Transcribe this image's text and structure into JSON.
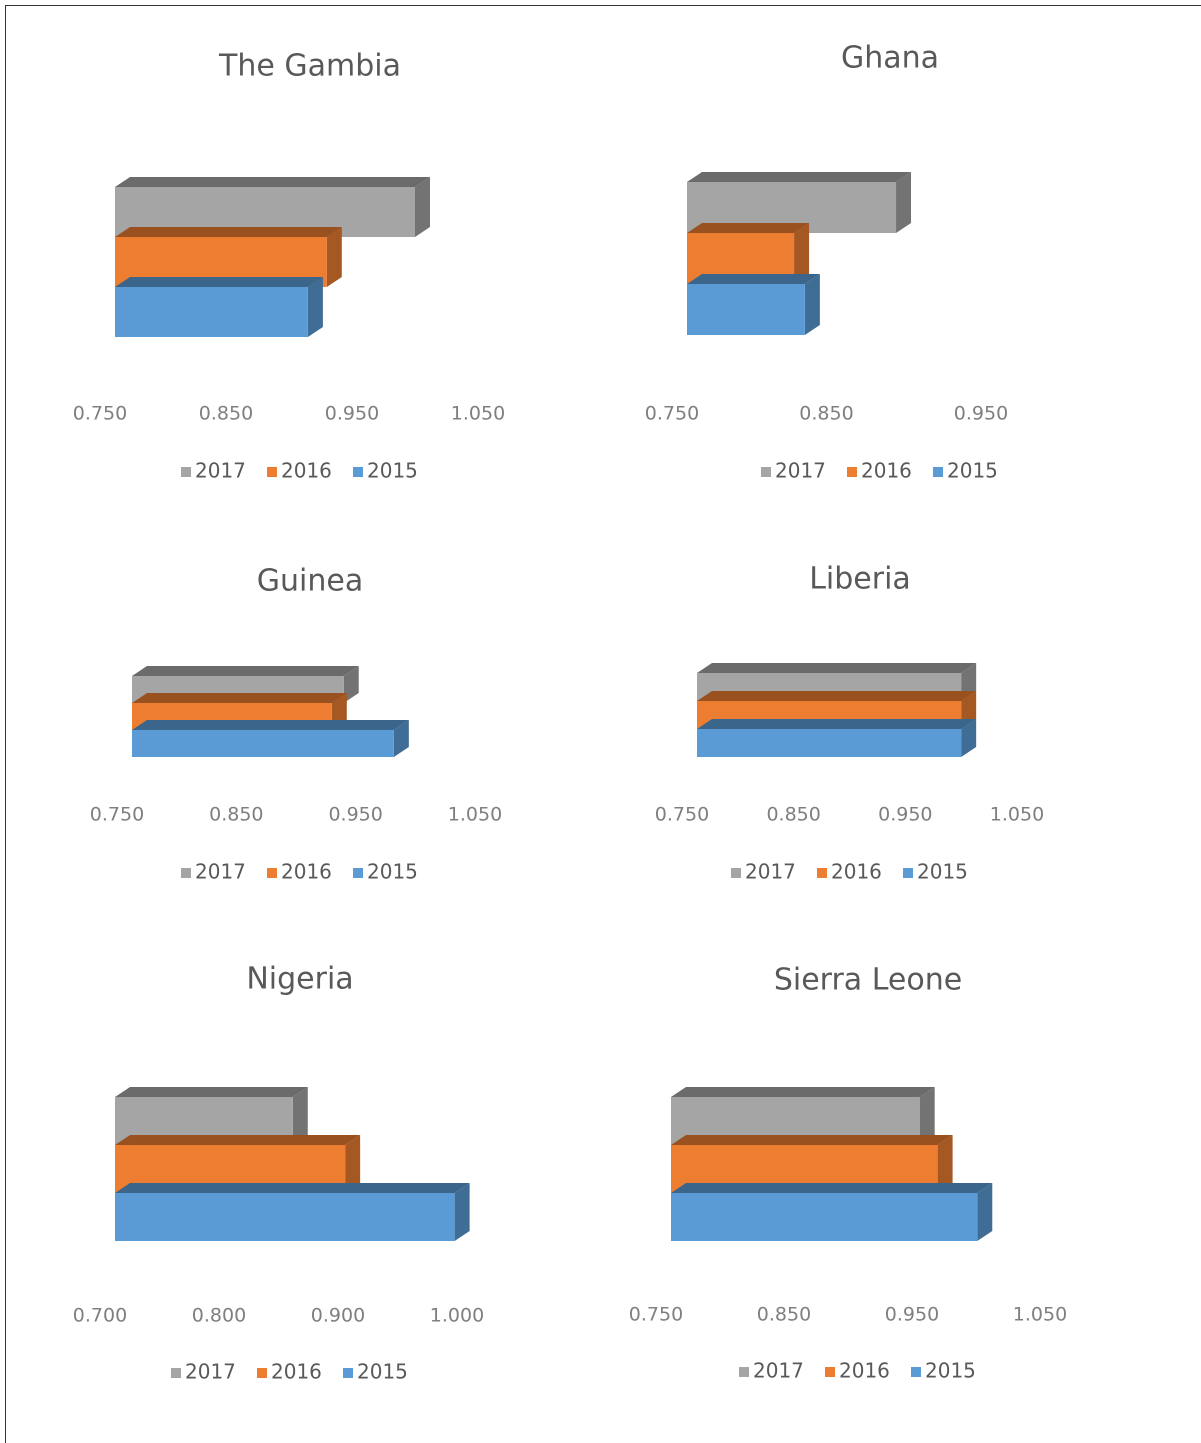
{
  "chart_data": [
    {
      "type": "bar",
      "orientation": "horizontal",
      "title": "The Gambia",
      "categories": [
        null
      ],
      "series": [
        {
          "name": "2017",
          "color": "#a5a5a5",
          "values": [
            1.0
          ]
        },
        {
          "name": "2016",
          "color": "#ed7d31",
          "values": [
            0.93
          ]
        },
        {
          "name": "2015",
          "color": "#5b9bd5",
          "values": [
            0.915
          ]
        }
      ],
      "xlim": [
        0.75,
        1.05
      ],
      "xticks": [
        {
          "value": 0.75,
          "label": "0.750"
        },
        {
          "value": 0.85,
          "label": "0.850"
        },
        {
          "value": 0.95,
          "label": "0.950"
        },
        {
          "value": 1.05,
          "label": "1.050"
        }
      ],
      "legend": "bottom"
    },
    {
      "type": "bar",
      "orientation": "horizontal",
      "title": "Ghana",
      "categories": [
        null
      ],
      "series": [
        {
          "name": "2017",
          "color": "#a5a5a5",
          "values": [
            0.895
          ]
        },
        {
          "name": "2016",
          "color": "#ed7d31",
          "values": [
            0.829
          ]
        },
        {
          "name": "2015",
          "color": "#5b9bd5",
          "values": [
            0.836
          ]
        }
      ],
      "xlim": [
        0.75,
        0.95
      ],
      "xticks": [
        {
          "value": 0.75,
          "label": "0.750"
        },
        {
          "value": 0.85,
          "label": "0.850"
        },
        {
          "value": 0.95,
          "label": "0.950"
        }
      ],
      "legend": "bottom"
    },
    {
      "type": "bar",
      "orientation": "horizontal",
      "title": "Guinea",
      "categories": [
        null
      ],
      "series": [
        {
          "name": "2017",
          "color": "#a5a5a5",
          "values": [
            0.94
          ]
        },
        {
          "name": "2016",
          "color": "#ed7d31",
          "values": [
            0.93
          ]
        },
        {
          "name": "2015",
          "color": "#5b9bd5",
          "values": [
            0.982
          ]
        }
      ],
      "xlim": [
        0.75,
        1.05
      ],
      "xticks": [
        {
          "value": 0.75,
          "label": "0.750"
        },
        {
          "value": 0.85,
          "label": "0.850"
        },
        {
          "value": 0.95,
          "label": "0.950"
        },
        {
          "value": 1.05,
          "label": "1.050"
        }
      ],
      "legend": "bottom"
    },
    {
      "type": "bar",
      "orientation": "horizontal",
      "title": "Liberia",
      "categories": [
        null
      ],
      "series": [
        {
          "name": "2017",
          "color": "#a5a5a5",
          "values": [
            1.0
          ]
        },
        {
          "name": "2016",
          "color": "#ed7d31",
          "values": [
            1.0
          ]
        },
        {
          "name": "2015",
          "color": "#5b9bd5",
          "values": [
            1.0
          ]
        }
      ],
      "xlim": [
        0.75,
        1.05
      ],
      "xticks": [
        {
          "value": 0.75,
          "label": "0.750"
        },
        {
          "value": 0.85,
          "label": "0.850"
        },
        {
          "value": 0.95,
          "label": "0.950"
        },
        {
          "value": 1.05,
          "label": "1.050"
        }
      ],
      "legend": "bottom"
    },
    {
      "type": "bar",
      "orientation": "horizontal",
      "title": "Nigeria",
      "categories": [
        null
      ],
      "series": [
        {
          "name": "2017",
          "color": "#a5a5a5",
          "values": [
            0.862
          ]
        },
        {
          "name": "2016",
          "color": "#ed7d31",
          "values": [
            0.906
          ]
        },
        {
          "name": "2015",
          "color": "#5b9bd5",
          "values": [
            0.998
          ]
        }
      ],
      "xlim": [
        0.7,
        1.0
      ],
      "xticks": [
        {
          "value": 0.7,
          "label": "0.700"
        },
        {
          "value": 0.8,
          "label": "0.800"
        },
        {
          "value": 0.9,
          "label": "0.900"
        },
        {
          "value": 1.0,
          "label": "1.000"
        }
      ],
      "legend": "bottom"
    },
    {
      "type": "bar",
      "orientation": "horizontal",
      "title": "Sierra Leone",
      "categories": [
        null
      ],
      "series": [
        {
          "name": "2017",
          "color": "#a5a5a5",
          "values": [
            0.956
          ]
        },
        {
          "name": "2016",
          "color": "#ed7d31",
          "values": [
            0.97
          ]
        },
        {
          "name": "2015",
          "color": "#5b9bd5",
          "values": [
            1.001
          ]
        }
      ],
      "xlim": [
        0.75,
        1.05
      ],
      "xticks": [
        {
          "value": 0.75,
          "label": "0.750"
        },
        {
          "value": 0.85,
          "label": "0.850"
        },
        {
          "value": 0.95,
          "label": "0.950"
        },
        {
          "value": 1.05,
          "label": "1.050"
        }
      ],
      "legend": "bottom"
    }
  ]
}
